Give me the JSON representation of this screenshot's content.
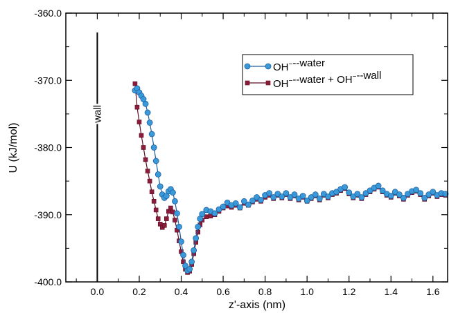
{
  "chart_data": {
    "type": "line",
    "xlabel": "z'-axis (nm)",
    "ylabel": "U (kJ/mol)",
    "xlim": [
      -0.15,
      1.67
    ],
    "ylim": [
      -400,
      -360
    ],
    "x_ticks": [
      0.0,
      0.2,
      0.4,
      0.6,
      0.8,
      1.0,
      1.2,
      1.4,
      1.6
    ],
    "x_tick_labels": [
      "0.0",
      "0.2",
      "0.4",
      "0.6",
      "0.8",
      "1.0",
      "1.2",
      "1.4",
      "1.6"
    ],
    "y_ticks": [
      -400,
      -390,
      -380,
      -370,
      -360
    ],
    "y_tick_labels": [
      "-400.0",
      "-390.0",
      "-380.0",
      "-370.0",
      "-360.0"
    ],
    "grid": false,
    "legend_position": "top-right",
    "annotation": {
      "text": "wall",
      "x": 0.0
    },
    "series": [
      {
        "name_parts": [
          "OH",
          "--water"
        ],
        "color": "#3a9ad9",
        "edge_color": "#1f5fa0",
        "marker": "circle",
        "points": [
          [
            0.18,
            -371.5
          ],
          [
            0.19,
            -371.2
          ],
          [
            0.2,
            -371.8
          ],
          [
            0.21,
            -372.3
          ],
          [
            0.22,
            -372.8
          ],
          [
            0.23,
            -373.5
          ],
          [
            0.24,
            -374.8
          ],
          [
            0.25,
            -376.3
          ],
          [
            0.26,
            -378.0
          ],
          [
            0.27,
            -380.0
          ],
          [
            0.28,
            -382.0
          ],
          [
            0.29,
            -384.0
          ],
          [
            0.3,
            -385.8
          ],
          [
            0.31,
            -387.0
          ],
          [
            0.32,
            -387.5
          ],
          [
            0.33,
            -387.2
          ],
          [
            0.34,
            -386.5
          ],
          [
            0.35,
            -386.2
          ],
          [
            0.36,
            -386.7
          ],
          [
            0.37,
            -388.0
          ],
          [
            0.38,
            -389.8
          ],
          [
            0.39,
            -391.8
          ],
          [
            0.4,
            -394.0
          ],
          [
            0.41,
            -396.0
          ],
          [
            0.42,
            -397.6
          ],
          [
            0.43,
            -398.3
          ],
          [
            0.44,
            -398.1
          ],
          [
            0.45,
            -397.0
          ],
          [
            0.46,
            -395.3
          ],
          [
            0.47,
            -393.5
          ],
          [
            0.48,
            -391.8
          ],
          [
            0.49,
            -390.6
          ],
          [
            0.5,
            -389.9
          ],
          [
            0.52,
            -389.3
          ],
          [
            0.54,
            -389.5
          ],
          [
            0.56,
            -389.8
          ],
          [
            0.58,
            -389.2
          ],
          [
            0.6,
            -388.8
          ],
          [
            0.62,
            -388.2
          ],
          [
            0.64,
            -388.6
          ],
          [
            0.66,
            -388.3
          ],
          [
            0.68,
            -388.9
          ],
          [
            0.7,
            -388.0
          ],
          [
            0.72,
            -388.5
          ],
          [
            0.74,
            -387.9
          ],
          [
            0.76,
            -387.4
          ],
          [
            0.78,
            -387.8
          ],
          [
            0.8,
            -387.1
          ],
          [
            0.82,
            -386.8
          ],
          [
            0.84,
            -387.4
          ],
          [
            0.86,
            -386.9
          ],
          [
            0.88,
            -387.3
          ],
          [
            0.9,
            -386.8
          ],
          [
            0.92,
            -387.4
          ],
          [
            0.94,
            -387.0
          ],
          [
            0.96,
            -387.6
          ],
          [
            0.98,
            -387.2
          ],
          [
            1.0,
            -387.9
          ],
          [
            1.02,
            -387.4
          ],
          [
            1.04,
            -387.0
          ],
          [
            1.06,
            -387.6
          ],
          [
            1.08,
            -386.9
          ],
          [
            1.1,
            -387.3
          ],
          [
            1.12,
            -386.8
          ],
          [
            1.14,
            -386.6
          ],
          [
            1.16,
            -386.2
          ],
          [
            1.18,
            -385.9
          ],
          [
            1.2,
            -386.7
          ],
          [
            1.22,
            -387.3
          ],
          [
            1.24,
            -386.9
          ],
          [
            1.26,
            -387.4
          ],
          [
            1.28,
            -386.8
          ],
          [
            1.3,
            -386.4
          ],
          [
            1.32,
            -386.0
          ],
          [
            1.34,
            -385.7
          ],
          [
            1.36,
            -386.4
          ],
          [
            1.38,
            -386.9
          ],
          [
            1.4,
            -387.2
          ],
          [
            1.42,
            -386.6
          ],
          [
            1.44,
            -387.0
          ],
          [
            1.46,
            -387.5
          ],
          [
            1.48,
            -386.9
          ],
          [
            1.5,
            -386.5
          ],
          [
            1.52,
            -386.3
          ],
          [
            1.54,
            -386.8
          ],
          [
            1.56,
            -387.5
          ],
          [
            1.58,
            -387.0
          ],
          [
            1.6,
            -386.6
          ],
          [
            1.62,
            -387.1
          ],
          [
            1.64,
            -386.8
          ],
          [
            1.66,
            -386.9
          ]
        ]
      },
      {
        "name_parts": [
          "OH",
          "--water + OH",
          "--wall"
        ],
        "color": "#8c1c3c",
        "edge_color": "#5a0f24",
        "marker": "square",
        "points": [
          [
            0.18,
            -370.5
          ],
          [
            0.19,
            -374.0
          ],
          [
            0.2,
            -376.2
          ],
          [
            0.21,
            -378.2
          ],
          [
            0.22,
            -380.0
          ],
          [
            0.23,
            -381.8
          ],
          [
            0.24,
            -383.5
          ],
          [
            0.25,
            -385.0
          ],
          [
            0.26,
            -386.6
          ],
          [
            0.27,
            -388.0
          ],
          [
            0.28,
            -389.3
          ],
          [
            0.29,
            -390.6
          ],
          [
            0.3,
            -391.4
          ],
          [
            0.31,
            -391.9
          ],
          [
            0.32,
            -391.6
          ],
          [
            0.33,
            -390.6
          ],
          [
            0.34,
            -389.5
          ],
          [
            0.35,
            -389.0
          ],
          [
            0.36,
            -389.6
          ],
          [
            0.37,
            -390.8
          ],
          [
            0.38,
            -392.3
          ],
          [
            0.39,
            -393.9
          ],
          [
            0.4,
            -395.5
          ],
          [
            0.41,
            -397.0
          ],
          [
            0.42,
            -398.1
          ],
          [
            0.43,
            -398.6
          ],
          [
            0.44,
            -398.4
          ],
          [
            0.45,
            -397.4
          ],
          [
            0.46,
            -395.8
          ],
          [
            0.47,
            -394.1
          ],
          [
            0.48,
            -392.6
          ],
          [
            0.49,
            -391.5
          ],
          [
            0.5,
            -390.8
          ],
          [
            0.52,
            -390.3
          ],
          [
            0.54,
            -390.2
          ],
          [
            0.56,
            -390.0
          ],
          [
            0.58,
            -389.5
          ],
          [
            0.6,
            -389.0
          ],
          [
            0.62,
            -388.7
          ],
          [
            0.64,
            -388.9
          ],
          [
            0.66,
            -388.6
          ],
          [
            0.68,
            -389.0
          ],
          [
            0.7,
            -388.3
          ],
          [
            0.72,
            -388.6
          ],
          [
            0.74,
            -388.1
          ],
          [
            0.76,
            -387.7
          ],
          [
            0.78,
            -388.0
          ],
          [
            0.8,
            -387.4
          ],
          [
            0.82,
            -387.1
          ],
          [
            0.84,
            -387.6
          ],
          [
            0.86,
            -387.1
          ],
          [
            0.88,
            -387.5
          ],
          [
            0.9,
            -387.0
          ],
          [
            0.92,
            -387.6
          ],
          [
            0.94,
            -387.2
          ],
          [
            0.96,
            -387.8
          ],
          [
            0.98,
            -387.4
          ],
          [
            1.0,
            -388.0
          ],
          [
            1.02,
            -387.6
          ],
          [
            1.04,
            -387.2
          ],
          [
            1.06,
            -387.8
          ],
          [
            1.08,
            -387.1
          ],
          [
            1.1,
            -387.5
          ],
          [
            1.12,
            -387.0
          ],
          [
            1.14,
            -386.8
          ],
          [
            1.16,
            -386.4
          ],
          [
            1.18,
            -386.1
          ],
          [
            1.2,
            -386.9
          ],
          [
            1.22,
            -387.5
          ],
          [
            1.24,
            -387.1
          ],
          [
            1.26,
            -387.6
          ],
          [
            1.28,
            -387.0
          ],
          [
            1.3,
            -386.6
          ],
          [
            1.32,
            -386.2
          ],
          [
            1.34,
            -385.9
          ],
          [
            1.36,
            -386.6
          ],
          [
            1.38,
            -387.1
          ],
          [
            1.4,
            -387.4
          ],
          [
            1.42,
            -386.8
          ],
          [
            1.44,
            -387.2
          ],
          [
            1.46,
            -387.7
          ],
          [
            1.48,
            -387.1
          ],
          [
            1.5,
            -386.7
          ],
          [
            1.52,
            -386.5
          ],
          [
            1.54,
            -387.0
          ],
          [
            1.56,
            -387.7
          ],
          [
            1.58,
            -387.2
          ],
          [
            1.6,
            -386.8
          ],
          [
            1.62,
            -387.3
          ],
          [
            1.64,
            -387.0
          ],
          [
            1.66,
            -387.1
          ]
        ]
      }
    ]
  }
}
